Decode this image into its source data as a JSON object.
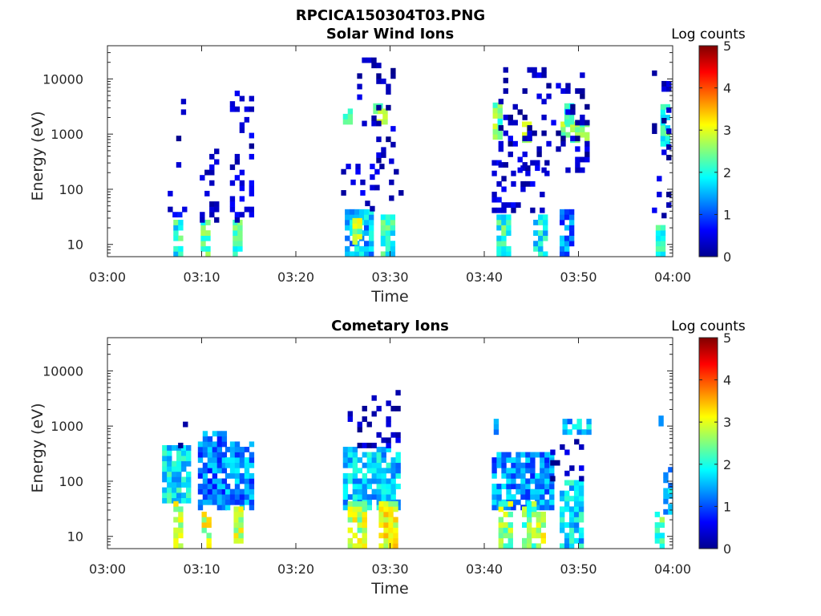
{
  "figure": {
    "title": "RPCICA150304T03.PNG"
  },
  "chart_data": [
    {
      "type": "heatmap",
      "title": "Solar Wind Ions",
      "xlabel": "Time",
      "ylabel": "Energy (eV)",
      "yscale": "log",
      "xlim": [
        0,
        60
      ],
      "ylim": [
        6,
        40000
      ],
      "xticks": [
        {
          "value": 0,
          "label": "03:00"
        },
        {
          "value": 10,
          "label": "03:10"
        },
        {
          "value": 20,
          "label": "03:20"
        },
        {
          "value": 30,
          "label": "03:30"
        },
        {
          "value": 40,
          "label": "03:40"
        },
        {
          "value": 50,
          "label": "03:50"
        },
        {
          "value": 60,
          "label": "04:00"
        }
      ],
      "yticks": [
        {
          "value": 10,
          "label": "10"
        },
        {
          "value": 100,
          "label": "100"
        },
        {
          "value": 1000,
          "label": "1000"
        },
        {
          "value": 10000,
          "label": "10000"
        }
      ],
      "colorbar": {
        "label": "Log counts",
        "min": 0,
        "max": 5,
        "ticks": [
          "0",
          "1",
          "2",
          "3",
          "4",
          "5"
        ],
        "colormap": "jet"
      },
      "blobs": [
        {
          "t0": 7.0,
          "t1": 7.6,
          "e0": 6,
          "e1": 25,
          "level": 2.0
        },
        {
          "t0": 6.4,
          "t1": 8.4,
          "e0": 25,
          "e1": 120,
          "level": 0.5
        },
        {
          "t0": 7.3,
          "t1": 8.2,
          "e0": 200,
          "e1": 4000,
          "level": 0.3
        },
        {
          "t0": 9.9,
          "t1": 10.7,
          "e0": 6,
          "e1": 25,
          "level": 2.3
        },
        {
          "t0": 9.8,
          "t1": 11.8,
          "e0": 25,
          "e1": 1000,
          "level": 0.4
        },
        {
          "t0": 13.3,
          "t1": 14.1,
          "e0": 6,
          "e1": 25,
          "level": 2.1
        },
        {
          "t0": 13.0,
          "t1": 15.2,
          "e0": 25,
          "e1": 6000,
          "level": 0.4
        },
        {
          "t0": 25.2,
          "t1": 27.8,
          "e0": 6,
          "e1": 40,
          "level": 1.5
        },
        {
          "t0": 26.0,
          "t1": 26.8,
          "e0": 10,
          "e1": 25,
          "level": 2.7
        },
        {
          "t0": 24.8,
          "t1": 31.0,
          "e0": 40,
          "e1": 300,
          "level": 0.4
        },
        {
          "t0": 25.0,
          "t1": 25.7,
          "e0": 1500,
          "e1": 3000,
          "level": 2.2
        },
        {
          "t0": 28.2,
          "t1": 29.3,
          "e0": 1500,
          "e1": 3000,
          "level": 2.6
        },
        {
          "t0": 29.0,
          "t1": 30.2,
          "e0": 6,
          "e1": 30,
          "level": 2.0
        },
        {
          "t0": 26.5,
          "t1": 30.2,
          "e0": 300,
          "e1": 20000,
          "level": 0.3
        },
        {
          "t0": 41.3,
          "t1": 42.5,
          "e0": 6,
          "e1": 30,
          "level": 2.1
        },
        {
          "t0": 40.8,
          "t1": 46.5,
          "e0": 30,
          "e1": 300,
          "level": 0.4
        },
        {
          "t0": 40.9,
          "t1": 41.5,
          "e0": 800,
          "e1": 3000,
          "level": 2.4
        },
        {
          "t0": 44.0,
          "t1": 44.8,
          "e0": 700,
          "e1": 1500,
          "level": 2.7
        },
        {
          "t0": 45.2,
          "t1": 46.4,
          "e0": 6,
          "e1": 30,
          "level": 1.9
        },
        {
          "t0": 48.1,
          "t1": 50.8,
          "e0": 700,
          "e1": 1500,
          "level": 2.6
        },
        {
          "t0": 48.5,
          "t1": 49.5,
          "e0": 1500,
          "e1": 3000,
          "level": 2.0
        },
        {
          "t0": 48.0,
          "t1": 49.5,
          "e0": 6,
          "e1": 40,
          "level": 1.2
        },
        {
          "t0": 41.5,
          "t1": 51.0,
          "e0": 200,
          "e1": 15000,
          "level": 0.3
        },
        {
          "t0": 58.2,
          "t1": 59.0,
          "e0": 6,
          "e1": 20,
          "level": 2.0
        },
        {
          "t0": 58.7,
          "t1": 59.4,
          "e0": 600,
          "e1": 3000,
          "level": 2.1
        },
        {
          "t0": 57.8,
          "t1": 59.6,
          "e0": 30,
          "e1": 12000,
          "level": 0.3
        }
      ]
    },
    {
      "type": "heatmap",
      "title": "Cometary Ions",
      "xlabel": "Time",
      "ylabel": "Energy (eV)",
      "yscale": "log",
      "xlim": [
        0,
        60
      ],
      "ylim": [
        6,
        40000
      ],
      "xticks": [
        {
          "value": 0,
          "label": "03:00"
        },
        {
          "value": 10,
          "label": "03:10"
        },
        {
          "value": 20,
          "label": "03:20"
        },
        {
          "value": 30,
          "label": "03:30"
        },
        {
          "value": 40,
          "label": "03:40"
        },
        {
          "value": 50,
          "label": "03:50"
        },
        {
          "value": 60,
          "label": "04:00"
        }
      ],
      "yticks": [
        {
          "value": 10,
          "label": "10"
        },
        {
          "value": 100,
          "label": "100"
        },
        {
          "value": 1000,
          "label": "1000"
        },
        {
          "value": 10000,
          "label": "10000"
        }
      ],
      "colorbar": {
        "label": "Log counts",
        "min": 0,
        "max": 5,
        "ticks": [
          "0",
          "1",
          "2",
          "3",
          "4",
          "5"
        ],
        "colormap": "jet"
      },
      "blobs": [
        {
          "t0": 5.8,
          "t1": 8.8,
          "e0": 40,
          "e1": 400,
          "level": 1.8
        },
        {
          "t0": 7.0,
          "t1": 8.0,
          "e0": 6,
          "e1": 40,
          "level": 2.9
        },
        {
          "t0": 7.5,
          "t1": 8.6,
          "e0": 400,
          "e1": 1100,
          "level": 0.4
        },
        {
          "t0": 9.6,
          "t1": 12.3,
          "e0": 30,
          "e1": 800,
          "level": 1.2
        },
        {
          "t0": 10.0,
          "t1": 11.0,
          "e0": 6,
          "e1": 30,
          "level": 2.9
        },
        {
          "t0": 12.5,
          "t1": 15.5,
          "e0": 30,
          "e1": 500,
          "level": 1.3
        },
        {
          "t0": 13.4,
          "t1": 14.3,
          "e0": 6,
          "e1": 30,
          "level": 2.8
        },
        {
          "t0": 25.0,
          "t1": 31.0,
          "e0": 30,
          "e1": 400,
          "level": 1.6
        },
        {
          "t0": 25.5,
          "t1": 27.5,
          "e0": 6,
          "e1": 40,
          "level": 2.8
        },
        {
          "t0": 28.8,
          "t1": 30.4,
          "e0": 6,
          "e1": 40,
          "level": 3.0
        },
        {
          "t0": 25.5,
          "t1": 31.0,
          "e0": 400,
          "e1": 4000,
          "level": 0.3
        },
        {
          "t0": 40.8,
          "t1": 47.0,
          "e0": 30,
          "e1": 300,
          "level": 1.3
        },
        {
          "t0": 41.5,
          "t1": 43.0,
          "e0": 6,
          "e1": 40,
          "level": 2.6
        },
        {
          "t0": 44.0,
          "t1": 45.5,
          "e0": 6,
          "e1": 40,
          "level": 2.4
        },
        {
          "t0": 45.5,
          "t1": 46.5,
          "e0": 6,
          "e1": 25,
          "level": 2.8
        },
        {
          "t0": 48.0,
          "t1": 50.2,
          "e0": 6,
          "e1": 100,
          "level": 1.7
        },
        {
          "t0": 48.3,
          "t1": 51.0,
          "e0": 700,
          "e1": 1200,
          "level": 1.6
        },
        {
          "t0": 47.0,
          "t1": 50.5,
          "e0": 100,
          "e1": 500,
          "level": 0.3
        },
        {
          "t0": 41.0,
          "t1": 41.3,
          "e0": 700,
          "e1": 1200,
          "level": 1.7
        },
        {
          "t0": 58.1,
          "t1": 58.9,
          "e0": 6,
          "e1": 25,
          "level": 2.2
        },
        {
          "t0": 59.0,
          "t1": 59.7,
          "e0": 25,
          "e1": 150,
          "level": 1.5
        },
        {
          "t0": 58.5,
          "t1": 59.0,
          "e0": 800,
          "e1": 1300,
          "level": 1.8
        }
      ]
    }
  ]
}
